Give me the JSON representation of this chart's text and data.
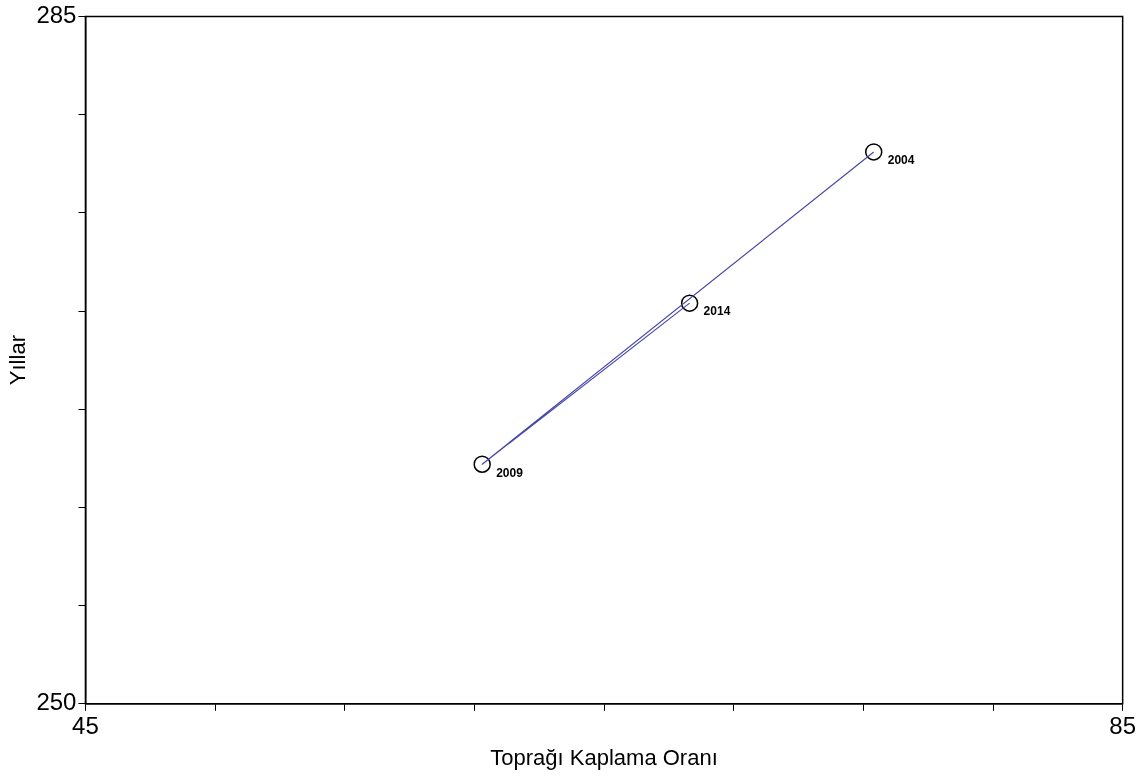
{
  "chart_data": {
    "type": "scatter",
    "xlabel": "Toprağı Kaplama Oranı",
    "ylabel": "Yıllar",
    "xlim": [
      45,
      85
    ],
    "ylim": [
      250,
      285
    ],
    "xticks": [
      45,
      {
        "value": 50,
        "label": null
      },
      {
        "value": 55,
        "label": null
      },
      {
        "value": 60,
        "label": null
      },
      {
        "value": 65,
        "label": null
      },
      {
        "value": 70,
        "label": null
      },
      {
        "value": 75,
        "label": null
      },
      {
        "value": 80,
        "label": null
      },
      85
    ],
    "yticks": [
      250,
      {
        "value": 255,
        "label": null
      },
      {
        "value": 260,
        "label": null
      },
      {
        "value": 265,
        "label": null
      },
      {
        "value": 270,
        "label": null
      },
      {
        "value": 275,
        "label": null
      },
      {
        "value": 280,
        "label": null
      },
      285
    ],
    "series": [
      {
        "type": "line",
        "color": "#4a48a8",
        "marker": "none",
        "x": [
          75.4,
          60.3,
          68.3
        ],
        "values": [
          278.1,
          262.2,
          270.4
        ]
      },
      {
        "color": "#000000",
        "marker": "circle",
        "x": [
          75.4,
          68.3,
          60.3
        ],
        "values": [
          278.1,
          270.4,
          262.2
        ]
      }
    ],
    "annotations": [
      {
        "text": "2004",
        "x": 75.4,
        "y": 278.1
      },
      {
        "text": "2014",
        "x": 68.3,
        "y": 270.4
      },
      {
        "text": "2009",
        "x": 60.3,
        "y": 262.2
      }
    ],
    "grid": false,
    "legend": false
  }
}
